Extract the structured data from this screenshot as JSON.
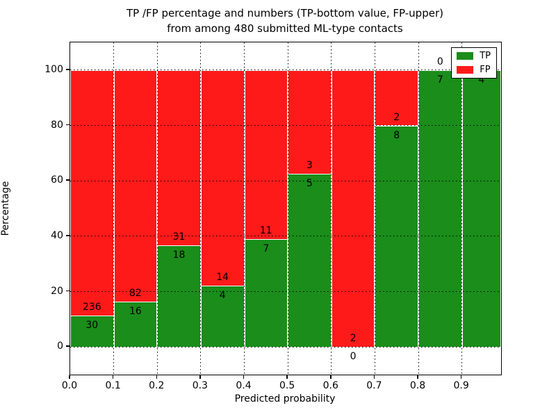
{
  "title": {
    "line1": "TP /FP percentage and numbers (TP-bottom value, FP-upper)",
    "line2": "from among 480 submitted ML-type contacts"
  },
  "y_axis": {
    "label": "Percentage",
    "ticks": [
      0,
      20,
      40,
      60,
      80,
      100
    ]
  },
  "x_axis": {
    "label": "Predicted probability",
    "ticks": [
      "0.0",
      "0.1",
      "0.2",
      "0.3",
      "0.4",
      "0.5",
      "0.6",
      "0.7",
      "0.8",
      "0.9"
    ]
  },
  "legend": {
    "items": [
      {
        "label": "TP",
        "color": "#1a8d1a"
      },
      {
        "label": "FP",
        "color": "#ff1a1a"
      }
    ]
  },
  "chart_data": {
    "type": "bar",
    "stacked": true,
    "title": "TP /FP percentage and numbers (TP-bottom value, FP-upper) from among 480 submitted ML-type contacts",
    "xlabel": "Predicted probability",
    "ylabel": "Percentage",
    "xlim": [
      0,
      0.99
    ],
    "ylim": [
      -10,
      110
    ],
    "grid": true,
    "legend_position": "upper right",
    "bin_width": 0.1,
    "total_contacts": 480,
    "colors": {
      "tp": "#1a8d1a",
      "fp": "#ff1a1a",
      "bar_edge": "#ffffff"
    },
    "bins": [
      {
        "x_start": 0.0,
        "tp": 30,
        "fp": 236,
        "tp_pct": 11.3
      },
      {
        "x_start": 0.1,
        "tp": 16,
        "fp": 82,
        "tp_pct": 16.3
      },
      {
        "x_start": 0.2,
        "tp": 18,
        "fp": 31,
        "tp_pct": 36.7
      },
      {
        "x_start": 0.3,
        "tp": 4,
        "fp": 14,
        "tp_pct": 22.2
      },
      {
        "x_start": 0.4,
        "tp": 7,
        "fp": 11,
        "tp_pct": 38.9
      },
      {
        "x_start": 0.5,
        "tp": 5,
        "fp": 3,
        "tp_pct": 62.5
      },
      {
        "x_start": 0.6,
        "tp": 0,
        "fp": 2,
        "tp_pct": 0.0
      },
      {
        "x_start": 0.7,
        "tp": 8,
        "fp": 2,
        "tp_pct": 80.0
      },
      {
        "x_start": 0.8,
        "tp": 7,
        "fp": 0,
        "tp_pct": 100.0
      },
      {
        "x_start": 0.9,
        "tp": 4,
        "fp": 0,
        "tp_pct": 100.0
      }
    ],
    "series": [
      {
        "name": "TP",
        "color": "#1a8d1a",
        "values": [
          30,
          16,
          18,
          4,
          7,
          5,
          0,
          8,
          7,
          4
        ]
      },
      {
        "name": "FP",
        "color": "#ff1a1a",
        "values": [
          236,
          82,
          31,
          14,
          11,
          3,
          2,
          2,
          0,
          0
        ]
      }
    ]
  }
}
